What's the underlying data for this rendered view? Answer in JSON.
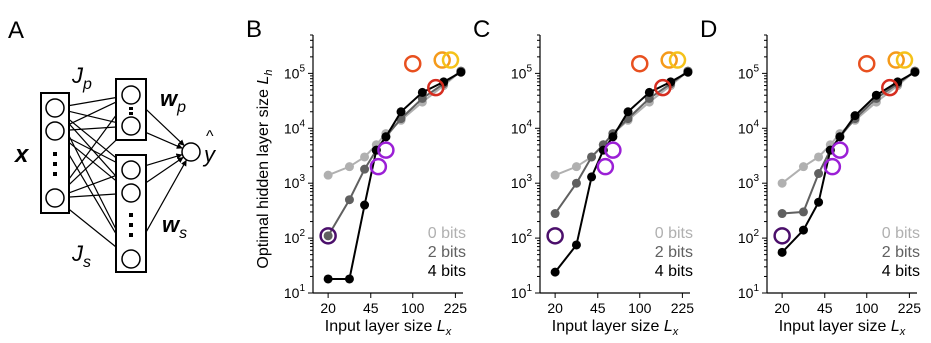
{
  "diagram": {
    "panel_label": "A",
    "input_label": "x",
    "jp_label": "J",
    "jp_sub": "p",
    "js_label": "J",
    "js_sub": "s",
    "wp_label": "w",
    "wp_sub": "p",
    "ws_label": "w",
    "ws_sub": "s",
    "output_label": "y",
    "output_hat": "^"
  },
  "shared_axes": {
    "ylabel": "Optimal hidden layer size ",
    "ylabel_sym": "L",
    "ylabel_sub": "h",
    "xlabel": "Input layer size ",
    "xlabel_sym": "L",
    "xlabel_sub": "x",
    "x_ticks": [
      20,
      45,
      100,
      225
    ],
    "y_ticks": [
      {
        "value": 10,
        "base": "10",
        "exp": "1"
      },
      {
        "value": 100,
        "base": "10",
        "exp": "2"
      },
      {
        "value": 1000,
        "base": "10",
        "exp": "3"
      },
      {
        "value": 10000,
        "base": "10",
        "exp": "4"
      },
      {
        "value": 100000,
        "base": "10",
        "exp": "5"
      }
    ],
    "xlim": [
      15,
      260
    ],
    "ylim": [
      10,
      500000
    ],
    "xscale": "log",
    "yscale": "log"
  },
  "chart_data": [
    {
      "panel": "B",
      "type": "line",
      "series": [
        {
          "name": "0 bits",
          "color": "#b0b0b0",
          "x": [
            20,
            30,
            40,
            50,
            60,
            80,
            120,
            180,
            250
          ],
          "y": [
            1400,
            2000,
            3000,
            5000,
            8000,
            14000,
            30000,
            60000,
            110000
          ]
        },
        {
          "name": "2 bits",
          "color": "#606060",
          "x": [
            20,
            30,
            40,
            50,
            60,
            80,
            120,
            180,
            250
          ],
          "y": [
            110,
            500,
            1800,
            4000,
            7000,
            15000,
            35000,
            65000,
            110000
          ]
        },
        {
          "name": "4 bits",
          "color": "#000000",
          "x": [
            20,
            30,
            40,
            50,
            60,
            80,
            120,
            180,
            250
          ],
          "y": [
            18,
            18,
            400,
            4000,
            7000,
            20000,
            45000,
            70000,
            105000
          ]
        }
      ],
      "highlight_circles": [
        {
          "x": 20,
          "y": 110,
          "color": "#4b0f6b"
        },
        {
          "x": 52,
          "y": 2000,
          "color": "#9b1fd6"
        },
        {
          "x": 60,
          "y": 4000,
          "color": "#9b1fd6"
        },
        {
          "x": 100,
          "y": 150000,
          "color": "#e8501f"
        },
        {
          "x": 155,
          "y": 55000,
          "color": "#d62d20"
        },
        {
          "x": 175,
          "y": 175000,
          "color": "#f59a1a"
        },
        {
          "x": 205,
          "y": 175000,
          "color": "#f5c21a"
        }
      ]
    },
    {
      "panel": "C",
      "type": "line",
      "series": [
        {
          "name": "0 bits",
          "color": "#b0b0b0",
          "x": [
            20,
            30,
            40,
            50,
            60,
            80,
            120,
            180,
            250
          ],
          "y": [
            1400,
            2000,
            3000,
            5000,
            8000,
            14000,
            30000,
            60000,
            110000
          ]
        },
        {
          "name": "2 bits",
          "color": "#606060",
          "x": [
            20,
            30,
            40,
            50,
            60,
            80,
            120,
            180,
            250
          ],
          "y": [
            280,
            1000,
            3000,
            5000,
            8000,
            15000,
            35000,
            65000,
            110000
          ]
        },
        {
          "name": "4 bits",
          "color": "#000000",
          "x": [
            20,
            30,
            40,
            50,
            60,
            80,
            120,
            180,
            250
          ],
          "y": [
            24,
            75,
            1300,
            4000,
            7000,
            20000,
            45000,
            70000,
            105000
          ]
        }
      ],
      "highlight_circles": [
        {
          "x": 20,
          "y": 110,
          "color": "#4b0f6b"
        },
        {
          "x": 52,
          "y": 2000,
          "color": "#9b1fd6"
        },
        {
          "x": 60,
          "y": 4000,
          "color": "#9b1fd6"
        },
        {
          "x": 100,
          "y": 150000,
          "color": "#e8501f"
        },
        {
          "x": 155,
          "y": 55000,
          "color": "#d62d20"
        },
        {
          "x": 175,
          "y": 175000,
          "color": "#f59a1a"
        },
        {
          "x": 205,
          "y": 175000,
          "color": "#f5c21a"
        }
      ]
    },
    {
      "panel": "D",
      "type": "line",
      "series": [
        {
          "name": "0 bits",
          "color": "#b0b0b0",
          "x": [
            20,
            30,
            40,
            50,
            60,
            80,
            120,
            180,
            250
          ],
          "y": [
            1000,
            2000,
            3000,
            5000,
            8000,
            14000,
            30000,
            60000,
            110000
          ]
        },
        {
          "name": "2 bits",
          "color": "#606060",
          "x": [
            20,
            30,
            40,
            50,
            60,
            80,
            120,
            180,
            250
          ],
          "y": [
            280,
            300,
            1500,
            4000,
            7000,
            15000,
            35000,
            65000,
            110000
          ]
        },
        {
          "name": "4 bits",
          "color": "#000000",
          "x": [
            20,
            30,
            40,
            50,
            60,
            80,
            120,
            180,
            250
          ],
          "y": [
            55,
            140,
            450,
            4000,
            7000,
            17000,
            40000,
            70000,
            105000
          ]
        }
      ],
      "highlight_circles": [
        {
          "x": 20,
          "y": 110,
          "color": "#4b0f6b"
        },
        {
          "x": 52,
          "y": 2000,
          "color": "#9b1fd6"
        },
        {
          "x": 60,
          "y": 4000,
          "color": "#9b1fd6"
        },
        {
          "x": 100,
          "y": 150000,
          "color": "#e8501f"
        },
        {
          "x": 155,
          "y": 55000,
          "color": "#d62d20"
        },
        {
          "x": 175,
          "y": 175000,
          "color": "#f59a1a"
        },
        {
          "x": 205,
          "y": 175000,
          "color": "#f5c21a"
        }
      ]
    }
  ]
}
